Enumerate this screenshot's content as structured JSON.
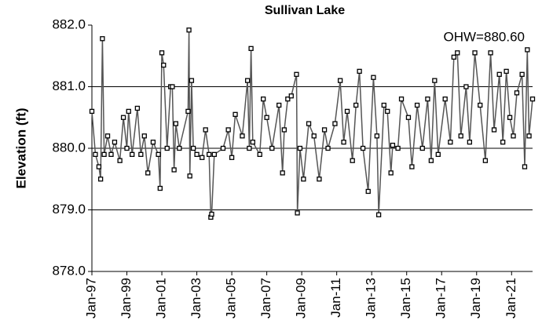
{
  "chart_data": {
    "type": "line",
    "title": "Sullivan Lake",
    "y_label": "Elevation (ft)",
    "annotation": "OHW=880.60",
    "x": [
      1997.0,
      1997.2,
      1997.4,
      1997.5,
      1997.6,
      1997.7,
      1997.9,
      1998.1,
      1998.3,
      1998.6,
      1998.8,
      1999.0,
      1999.1,
      1999.3,
      1999.6,
      1999.8,
      2000.0,
      2000.2,
      2000.5,
      2000.8,
      2000.9,
      2001.0,
      2001.1,
      2001.3,
      2001.5,
      2001.6,
      2001.7,
      2001.8,
      2002.0,
      2002.5,
      2002.55,
      2002.6,
      2002.7,
      2002.8,
      2003.0,
      2003.3,
      2003.5,
      2003.7,
      2003.8,
      2003.85,
      2004.0,
      2004.5,
      2004.8,
      2005.0,
      2005.2,
      2005.6,
      2005.9,
      2006.0,
      2006.1,
      2006.2,
      2006.6,
      2006.8,
      2007.0,
      2007.3,
      2007.7,
      2007.9,
      2008.0,
      2008.2,
      2008.4,
      2008.7,
      2008.75,
      2008.9,
      2009.1,
      2009.4,
      2009.7,
      2010.0,
      2010.3,
      2010.5,
      2010.9,
      2011.2,
      2011.4,
      2011.6,
      2011.9,
      2012.1,
      2012.3,
      2012.5,
      2012.8,
      2013.1,
      2013.3,
      2013.4,
      2013.7,
      2013.9,
      2014.1,
      2014.2,
      2014.5,
      2014.7,
      2015.1,
      2015.3,
      2015.6,
      2015.9,
      2016.2,
      2016.4,
      2016.6,
      2016.8,
      2017.2,
      2017.5,
      2017.7,
      2017.9,
      2018.1,
      2018.4,
      2018.6,
      2018.9,
      2019.2,
      2019.5,
      2019.8,
      2020.0,
      2020.3,
      2020.5,
      2020.7,
      2020.9,
      2021.1,
      2021.3,
      2021.6,
      2021.75,
      2021.9,
      2022.0,
      2022.2
    ],
    "series": [
      {
        "name": "Sullivan Lake",
        "color": "#555555",
        "marker_color": "#000000",
        "values": [
          880.6,
          879.9,
          879.7,
          879.5,
          881.78,
          879.9,
          880.2,
          879.9,
          880.1,
          879.8,
          880.5,
          880.0,
          880.6,
          879.9,
          880.65,
          879.9,
          880.2,
          879.6,
          880.1,
          879.9,
          879.35,
          881.55,
          881.35,
          880.0,
          881.0,
          881.0,
          879.65,
          880.4,
          880.0,
          880.6,
          881.92,
          879.55,
          881.1,
          880.0,
          879.9,
          879.85,
          880.3,
          879.9,
          878.88,
          878.93,
          879.9,
          880.0,
          880.3,
          879.85,
          880.55,
          880.2,
          881.1,
          880.0,
          881.62,
          880.1,
          879.9,
          880.8,
          880.5,
          880.0,
          880.7,
          879.6,
          880.3,
          880.8,
          880.85,
          881.2,
          878.95,
          880.0,
          879.5,
          880.4,
          880.2,
          879.5,
          880.3,
          880.0,
          880.4,
          881.1,
          880.1,
          880.6,
          879.8,
          880.7,
          881.25,
          880.0,
          879.3,
          881.15,
          880.2,
          878.92,
          880.7,
          880.6,
          879.6,
          880.05,
          880.0,
          880.8,
          880.5,
          879.7,
          880.7,
          880.0,
          880.8,
          879.8,
          881.1,
          879.9,
          880.8,
          880.1,
          881.48,
          881.55,
          880.2,
          881.0,
          880.1,
          881.55,
          880.7,
          879.8,
          881.55,
          880.3,
          881.2,
          880.1,
          881.25,
          880.5,
          880.2,
          880.9,
          881.2,
          879.7,
          881.6,
          880.2,
          880.8
        ]
      }
    ],
    "xlim": [
      1997,
      2022.2
    ],
    "ylim": [
      878,
      882
    ],
    "xticks": [
      {
        "value": 1997,
        "label": "Jan-97"
      },
      {
        "value": 1999,
        "label": "Jan-99"
      },
      {
        "value": 2001,
        "label": "Jan-01"
      },
      {
        "value": 2003,
        "label": "Jan-03"
      },
      {
        "value": 2005,
        "label": "Jan-05"
      },
      {
        "value": 2007,
        "label": "Jan-07"
      },
      {
        "value": 2009,
        "label": "Jan-09"
      },
      {
        "value": 2011,
        "label": "Jan-11"
      },
      {
        "value": 2013,
        "label": "Jan-13"
      },
      {
        "value": 2015,
        "label": "Jan-15"
      },
      {
        "value": 2017,
        "label": "Jan-17"
      },
      {
        "value": 2019,
        "label": "Jan-19"
      },
      {
        "value": 2021,
        "label": "Jan-21"
      }
    ],
    "yticks": [
      {
        "value": 878,
        "label": "878.0"
      },
      {
        "value": 879,
        "label": "879.0"
      },
      {
        "value": 880,
        "label": "880.0"
      },
      {
        "value": 881,
        "label": "881.0"
      },
      {
        "value": 882,
        "label": "882.0"
      }
    ],
    "grid": true
  }
}
